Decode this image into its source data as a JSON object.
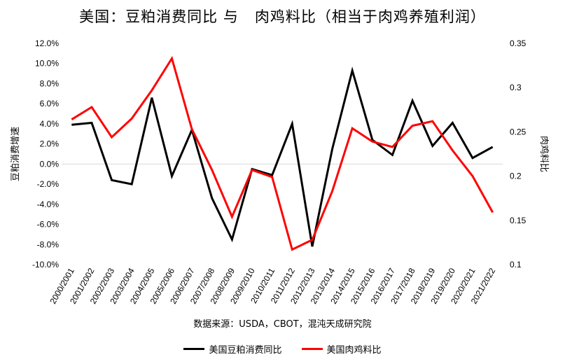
{
  "chart_data": {
    "type": "line",
    "title": "美国：豆粕消费同比 与   肉鸡料比（相当于肉鸡养殖利润）",
    "source": "数据来源：USDA，CBOT，混沌天成研究院",
    "categories": [
      "2000/2001",
      "2001/2002",
      "2002/2003",
      "2003/2004",
      "2004/2005",
      "2005/2006",
      "2006/2007",
      "2007/2008",
      "2008/2009",
      "2009/2010",
      "2010/2011",
      "2011/2012",
      "2012/2013",
      "2013/2014",
      "2014/2015",
      "2015/2016",
      "2016/2017",
      "2017/2018",
      "2018/2019",
      "2019/2020",
      "2020/2021",
      "2021/2022"
    ],
    "ylabel_left": "豆粕消费增速",
    "ylabel_right": "肉鸡料比",
    "ylim_left": [
      -10,
      12
    ],
    "yticks_left": [
      "12.0%",
      "10.0%",
      "8.0%",
      "6.0%",
      "4.0%",
      "2.0%",
      "0.0%",
      "-2.0%",
      "-4.0%",
      "-6.0%",
      "-8.0%",
      "-10.0%"
    ],
    "ylim_right": [
      0.1,
      0.35
    ],
    "yticks_right": [
      "0.35",
      "0.3",
      "0.25",
      "0.2",
      "0.15",
      "0.1"
    ],
    "grid": false,
    "legend_position": "bottom",
    "series": [
      {
        "name": "美国豆粕消费同比",
        "axis": "left",
        "color": "#000000",
        "values": [
          3.9,
          4.1,
          -1.6,
          -2.0,
          6.6,
          -1.2,
          3.4,
          -3.4,
          -7.5,
          -0.5,
          -1.1,
          4.0,
          -8.2,
          1.5,
          9.3,
          2.4,
          0.9,
          6.3,
          1.8,
          4.1,
          0.6,
          1.7
        ]
      },
      {
        "name": "美国肉鸡料比",
        "axis": "right",
        "color": "#ff0000",
        "values": [
          0.264,
          0.278,
          0.244,
          0.265,
          0.297,
          0.333,
          0.253,
          0.207,
          0.154,
          0.207,
          0.199,
          0.117,
          0.128,
          0.183,
          0.254,
          0.239,
          0.233,
          0.257,
          0.262,
          0.229,
          0.2,
          0.159
        ]
      }
    ]
  }
}
